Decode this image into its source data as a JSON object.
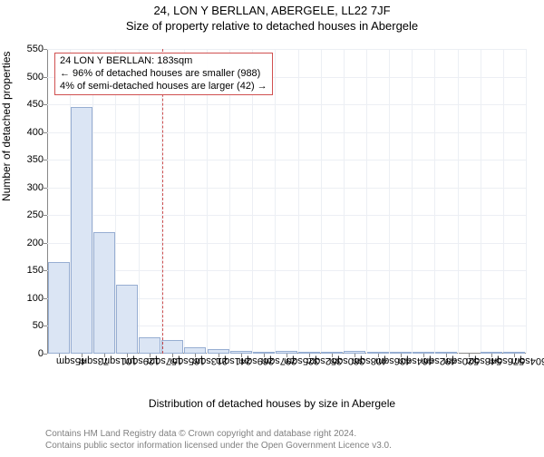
{
  "title_main": "24, LON Y BERLLAN, ABERGELE, LL22 7JF",
  "title_sub": "Size of property relative to detached houses in Abergele",
  "chart": {
    "type": "bar",
    "ylabel": "Number of detached properties",
    "xlabel": "Distribution of detached houses by size in Abergele",
    "ylim": [
      0,
      550
    ],
    "ytick_step": 50,
    "bar_fill": "#dbe5f4",
    "bar_stroke": "#97aed2",
    "grid_color": "#eceff4",
    "background_color": "#ffffff",
    "marker": {
      "x_category_index": 5,
      "color": "#d05050",
      "annotation": {
        "line1": "24 LON Y BERLLAN: 183sqm",
        "line2": "← 96% of detached houses are smaller (988)",
        "line3": "4% of semi-detached houses are larger (42) →"
      }
    },
    "categories": [
      "45sqm",
      "73sqm",
      "101sqm",
      "129sqm",
      "157sqm",
      "185sqm",
      "213sqm",
      "241sqm",
      "269sqm",
      "297sqm",
      "325sqm",
      "352sqm",
      "380sqm",
      "408sqm",
      "436sqm",
      "464sqm",
      "492sqm",
      "520sqm",
      "548sqm",
      "576sqm",
      "604sqm"
    ],
    "values": [
      165,
      445,
      220,
      125,
      30,
      25,
      12,
      8,
      5,
      1,
      5,
      1,
      1,
      5,
      3,
      1,
      1,
      1,
      0,
      1,
      1
    ]
  },
  "footer": {
    "line1": "Contains HM Land Registry data © Crown copyright and database right 2024.",
    "line2": "Contains public sector information licensed under the Open Government Licence v3.0."
  }
}
